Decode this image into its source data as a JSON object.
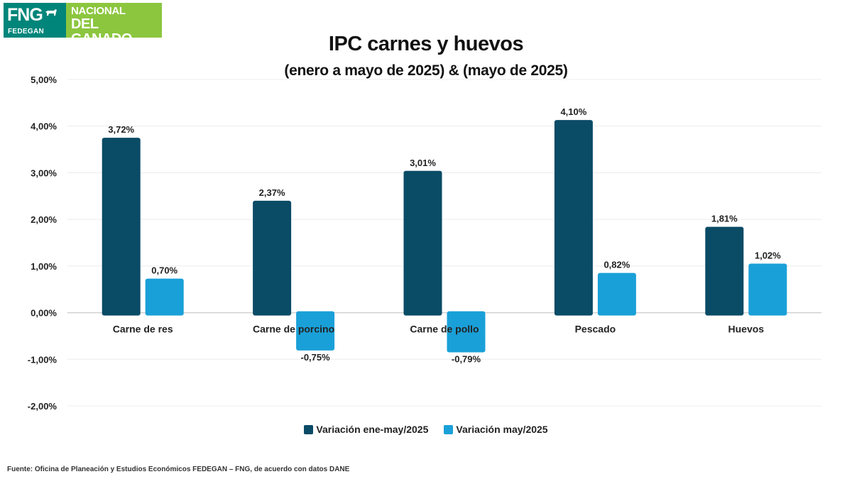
{
  "logo": {
    "short": "FNG",
    "sub": "FEDEGAN",
    "line1": "FONDO NACIONAL",
    "line2": "DEL GANADO"
  },
  "colors": {
    "series1": "#0a4b66",
    "series2": "#1aa0d8",
    "logo_green_dark": "#00857a",
    "logo_green_light": "#8cc63f"
  },
  "chart_data": {
    "type": "bar",
    "title": "IPC carnes y huevos",
    "subtitle": "(enero a mayo de 2025) & (mayo de 2025)",
    "categories": [
      "Carne de res",
      "Carne de porcino",
      "Carne de pollo",
      "Pescado",
      "Huevos"
    ],
    "series": [
      {
        "name": "Variación ene-may/2025",
        "values": [
          3.72,
          2.37,
          3.01,
          4.1,
          1.81
        ],
        "labels": [
          "3,72%",
          "2,37%",
          "3,01%",
          "4,10%",
          "1,81%"
        ]
      },
      {
        "name": "Variación may/2025",
        "values": [
          0.7,
          -0.75,
          -0.79,
          0.82,
          1.02
        ],
        "labels": [
          "0,70%",
          "-0,75%",
          "-0,79%",
          "0,82%",
          "1,02%"
        ]
      }
    ],
    "ylim": [
      -2,
      5
    ],
    "yticks": [
      5,
      4,
      3,
      2,
      1,
      0,
      -1,
      -2
    ],
    "ytick_labels": [
      "5,00%",
      "4,00%",
      "3,00%",
      "2,00%",
      "1,00%",
      "0,00%",
      "-1,00%",
      "-2,00%"
    ],
    "grid": true,
    "legend_position": "bottom"
  },
  "source": "Fuente: Oficina de Planeación y Estudios Económicos FEDEGAN – FNG, de acuerdo con datos DANE"
}
